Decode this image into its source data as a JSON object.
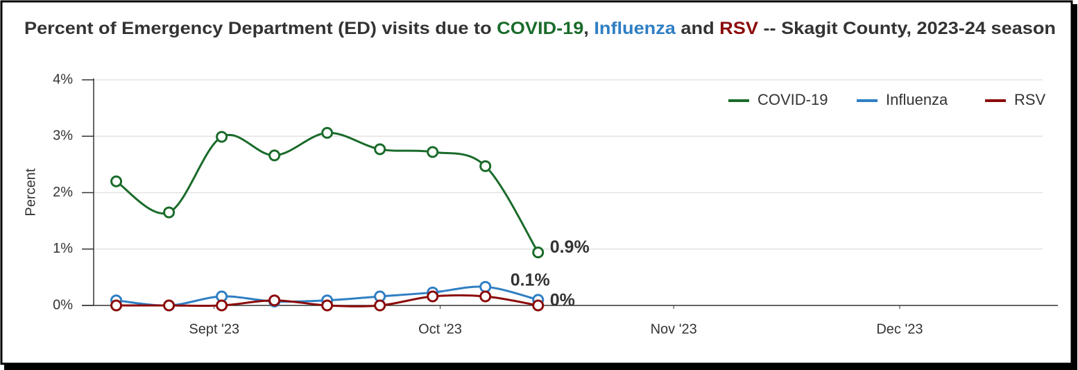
{
  "chart_data": {
    "type": "line",
    "title": [
      {
        "text": "Percent of Emergency Department (ED) visits due to ",
        "color": "#333333"
      },
      {
        "text": "COVID-19",
        "color": "#1a6b2a"
      },
      {
        "text": ", ",
        "color": "#333333"
      },
      {
        "text": "Influenza",
        "color": "#2f7ec3"
      },
      {
        "text": " and ",
        "color": "#333333"
      },
      {
        "text": "RSV",
        "color": "#8b0a0a"
      },
      {
        "text": " -- Skagit County, 2023-24 season",
        "color": "#333333"
      }
    ],
    "ylabel": "Percent",
    "x": [
      "2023-08-19",
      "2023-08-26",
      "2023-09-02",
      "2023-09-09",
      "2023-09-16",
      "2023-09-23",
      "2023-09-30",
      "2023-10-07",
      "2023-10-14"
    ],
    "xlim": [
      "2023-08-16",
      "2023-12-22"
    ],
    "xticks": [
      {
        "value": "2023-09-01",
        "label": "Sept '23"
      },
      {
        "value": "2023-10-01",
        "label": "Oct '23"
      },
      {
        "value": "2023-11-01",
        "label": "Nov '23"
      },
      {
        "value": "2023-12-01",
        "label": "Dec '23"
      }
    ],
    "ylim": [
      0,
      4
    ],
    "yticks": [
      {
        "value": 0,
        "label": "0%"
      },
      {
        "value": 1,
        "label": "1%"
      },
      {
        "value": 2,
        "label": "2%"
      },
      {
        "value": 3,
        "label": "3%"
      },
      {
        "value": 4,
        "label": "4%"
      }
    ],
    "grid": true,
    "legend": "top-right",
    "series": [
      {
        "name": "COVID-19",
        "color": "#1a6b2a",
        "values": [
          2.2,
          1.65,
          2.99,
          2.66,
          3.06,
          2.77,
          2.72,
          2.47,
          0.94
        ],
        "value_labels": [
          null,
          null,
          null,
          null,
          null,
          null,
          null,
          null,
          "0.9%"
        ]
      },
      {
        "name": "Influenza",
        "color": "#2f7ec3",
        "values": [
          0.09,
          0,
          0.16,
          0.07,
          0.09,
          0.16,
          0.23,
          0.33,
          0.1
        ],
        "value_labels": [
          null,
          null,
          null,
          null,
          null,
          null,
          null,
          null,
          "0.1%"
        ]
      },
      {
        "name": "RSV",
        "color": "#8b0a0a",
        "values": [
          0,
          0,
          0,
          0.09,
          0,
          0,
          0.16,
          0.16,
          0
        ],
        "value_labels": [
          null,
          null,
          null,
          null,
          null,
          null,
          null,
          null,
          "0%"
        ]
      }
    ]
  }
}
